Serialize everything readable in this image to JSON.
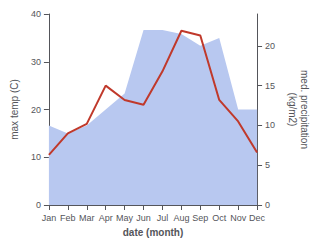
{
  "chart_data": {
    "type": "line",
    "categories": [
      "Jan",
      "Feb",
      "Mar",
      "Apr",
      "May",
      "Jun",
      "Jul",
      "Aug",
      "Sep",
      "Oct",
      "Nov",
      "Dec"
    ],
    "series": [
      {
        "type": "area",
        "axis": "y2",
        "color": "#b8c8f0",
        "values": [
          10.0,
          9.0,
          10.0,
          12.0,
          14.0,
          22.0,
          22.0,
          21.5,
          20.0,
          21.0,
          12.0,
          12.0
        ]
      },
      {
        "type": "line",
        "axis": "y",
        "color": "#c0392b",
        "values": [
          10.5,
          15.0,
          17.0,
          25.0,
          22.0,
          21.0,
          28.0,
          36.5,
          35.5,
          22.0,
          17.5,
          11.0
        ]
      }
    ],
    "xlabel": "date (month)",
    "ylabel": "max temp (C)",
    "y2label": "med. precipitation\n(kg/m2)",
    "ylim": [
      0,
      40
    ],
    "yticks": [
      0,
      10,
      20,
      30,
      40
    ],
    "y2lim": [
      0,
      24
    ],
    "y2ticks": [
      0,
      5,
      10,
      15,
      20
    ],
    "grid": false
  }
}
